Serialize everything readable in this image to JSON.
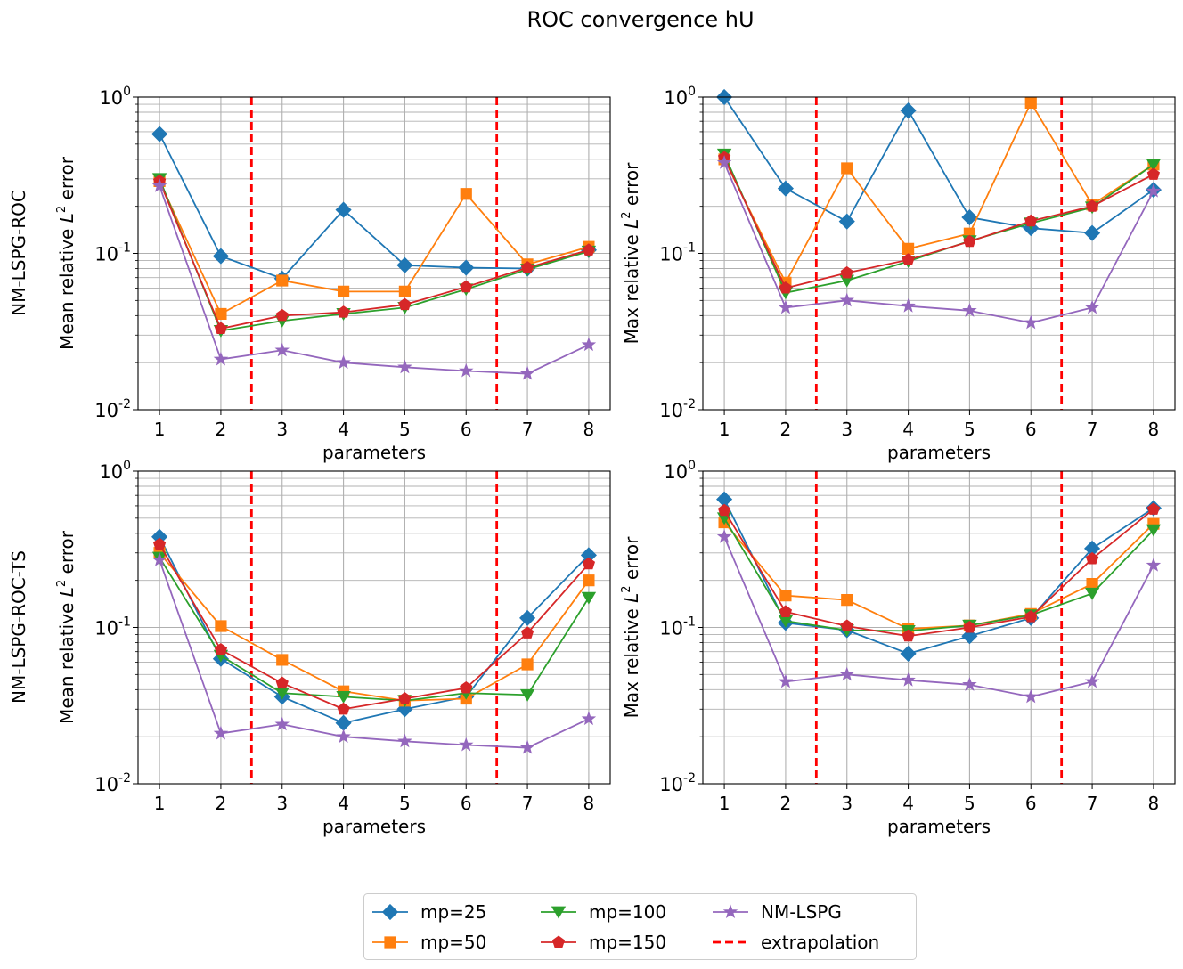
{
  "figure": {
    "title": "ROC convergence hU",
    "row_labels": [
      "NM-LSPG-ROC",
      "NM-LSPG-ROC-TS"
    ]
  },
  "legend": {
    "entries": [
      {
        "label": "mp=25",
        "color": "#1f77b4",
        "marker": "diamond",
        "line": "solid"
      },
      {
        "label": "mp=50",
        "color": "#ff7f0e",
        "marker": "square",
        "line": "solid"
      },
      {
        "label": "mp=100",
        "color": "#2ca02c",
        "marker": "triangle-down",
        "line": "solid"
      },
      {
        "label": "mp=150",
        "color": "#d62728",
        "marker": "pentagon",
        "line": "solid"
      },
      {
        "label": "NM-LSPG",
        "color": "#9467bd",
        "marker": "star",
        "line": "solid"
      },
      {
        "label": "extrapolation",
        "color": "#ff0000",
        "marker": "none",
        "line": "dashed"
      }
    ]
  },
  "chart_data": [
    {
      "type": "line",
      "row_label": "NM-LSPG-ROC",
      "xlabel": "parameters",
      "ylabel_prefix": "Mean relative ",
      "ylabel_math": "L",
      "ylabel_sup": "2",
      "ylabel_suffix": " error",
      "yscale": "log",
      "ylim": [
        0.01,
        1
      ],
      "xlim": [
        0.65,
        8.35
      ],
      "x": [
        1,
        2,
        3,
        4,
        5,
        6,
        7,
        8
      ],
      "x_ticks": [
        "1",
        "2",
        "3",
        "4",
        "5",
        "6",
        "7",
        "8"
      ],
      "extrapolation_x": [
        2.5,
        6.5
      ],
      "grid": true,
      "series": [
        {
          "name": "mp=25",
          "values": [
            0.58,
            0.096,
            0.069,
            0.19,
            0.084,
            0.081,
            0.08,
            0.105
          ]
        },
        {
          "name": "mp=50",
          "values": [
            0.29,
            0.041,
            0.067,
            0.057,
            0.057,
            0.24,
            0.085,
            0.11
          ]
        },
        {
          "name": "mp=100",
          "values": [
            0.3,
            0.032,
            0.037,
            0.041,
            0.045,
            0.059,
            0.079,
            0.103
          ]
        },
        {
          "name": "mp=150",
          "values": [
            0.29,
            0.033,
            0.04,
            0.042,
            0.047,
            0.061,
            0.081,
            0.105
          ]
        },
        {
          "name": "NM-LSPG",
          "values": [
            0.27,
            0.021,
            0.024,
            0.02,
            0.0187,
            0.0177,
            0.017,
            0.026
          ]
        }
      ]
    },
    {
      "type": "line",
      "row_label": "NM-LSPG-ROC",
      "xlabel": "parameters",
      "ylabel_prefix": "Max relative ",
      "ylabel_math": "L",
      "ylabel_sup": "2",
      "ylabel_suffix": " error",
      "yscale": "log",
      "ylim": [
        0.01,
        1
      ],
      "xlim": [
        0.65,
        8.35
      ],
      "x": [
        1,
        2,
        3,
        4,
        5,
        6,
        7,
        8
      ],
      "x_ticks": [
        "1",
        "2",
        "3",
        "4",
        "5",
        "6",
        "7",
        "8"
      ],
      "extrapolation_x": [
        2.5,
        6.5
      ],
      "grid": true,
      "series": [
        {
          "name": "mp=25",
          "values": [
            1.0,
            0.26,
            0.16,
            0.82,
            0.17,
            0.145,
            0.135,
            0.255
          ]
        },
        {
          "name": "mp=50",
          "values": [
            0.4,
            0.065,
            0.35,
            0.107,
            0.134,
            0.92,
            0.205,
            0.37
          ]
        },
        {
          "name": "mp=100",
          "values": [
            0.43,
            0.056,
            0.067,
            0.089,
            0.12,
            0.156,
            0.197,
            0.37
          ]
        },
        {
          "name": "mp=150",
          "values": [
            0.41,
            0.06,
            0.075,
            0.091,
            0.119,
            0.161,
            0.2,
            0.32
          ]
        },
        {
          "name": "NM-LSPG",
          "values": [
            0.38,
            0.045,
            0.05,
            0.046,
            0.043,
            0.036,
            0.045,
            0.25
          ]
        }
      ]
    },
    {
      "type": "line",
      "row_label": "NM-LSPG-ROC-TS",
      "xlabel": "parameters",
      "ylabel_prefix": "Mean relative ",
      "ylabel_math": "L",
      "ylabel_sup": "2",
      "ylabel_suffix": " error",
      "yscale": "log",
      "ylim": [
        0.01,
        1
      ],
      "xlim": [
        0.65,
        8.35
      ],
      "x": [
        1,
        2,
        3,
        4,
        5,
        6,
        7,
        8
      ],
      "x_ticks": [
        "1",
        "2",
        "3",
        "4",
        "5",
        "6",
        "7",
        "8"
      ],
      "extrapolation_x": [
        2.5,
        6.5
      ],
      "grid": true,
      "series": [
        {
          "name": "mp=25",
          "values": [
            0.38,
            0.063,
            0.036,
            0.0245,
            0.03,
            0.036,
            0.115,
            0.29
          ]
        },
        {
          "name": "mp=50",
          "values": [
            0.3,
            0.102,
            0.062,
            0.039,
            0.034,
            0.035,
            0.058,
            0.2
          ]
        },
        {
          "name": "mp=100",
          "values": [
            0.28,
            0.066,
            0.038,
            0.036,
            0.034,
            0.038,
            0.037,
            0.155
          ]
        },
        {
          "name": "mp=150",
          "values": [
            0.34,
            0.072,
            0.044,
            0.03,
            0.035,
            0.041,
            0.092,
            0.255
          ]
        },
        {
          "name": "NM-LSPG",
          "values": [
            0.27,
            0.021,
            0.024,
            0.02,
            0.0187,
            0.0177,
            0.017,
            0.026
          ]
        }
      ]
    },
    {
      "type": "line",
      "row_label": "NM-LSPG-ROC-TS",
      "xlabel": "parameters",
      "ylabel_prefix": "Max relative ",
      "ylabel_math": "L",
      "ylabel_sup": "2",
      "ylabel_suffix": " error",
      "yscale": "log",
      "ylim": [
        0.01,
        1
      ],
      "xlim": [
        0.65,
        8.35
      ],
      "x": [
        1,
        2,
        3,
        4,
        5,
        6,
        7,
        8
      ],
      "x_ticks": [
        "1",
        "2",
        "3",
        "4",
        "5",
        "6",
        "7",
        "8"
      ],
      "extrapolation_x": [
        2.5,
        6.5
      ],
      "grid": true,
      "series": [
        {
          "name": "mp=25",
          "values": [
            0.66,
            0.107,
            0.096,
            0.068,
            0.088,
            0.115,
            0.32,
            0.58
          ]
        },
        {
          "name": "mp=50",
          "values": [
            0.47,
            0.16,
            0.15,
            0.098,
            0.103,
            0.122,
            0.19,
            0.46
          ]
        },
        {
          "name": "mp=100",
          "values": [
            0.5,
            0.11,
            0.096,
            0.095,
            0.103,
            0.12,
            0.165,
            0.42
          ]
        },
        {
          "name": "mp=150",
          "values": [
            0.56,
            0.126,
            0.102,
            0.088,
            0.1,
            0.117,
            0.275,
            0.57
          ]
        },
        {
          "name": "NM-LSPG",
          "values": [
            0.38,
            0.045,
            0.05,
            0.046,
            0.043,
            0.036,
            0.045,
            0.25
          ]
        }
      ]
    }
  ]
}
